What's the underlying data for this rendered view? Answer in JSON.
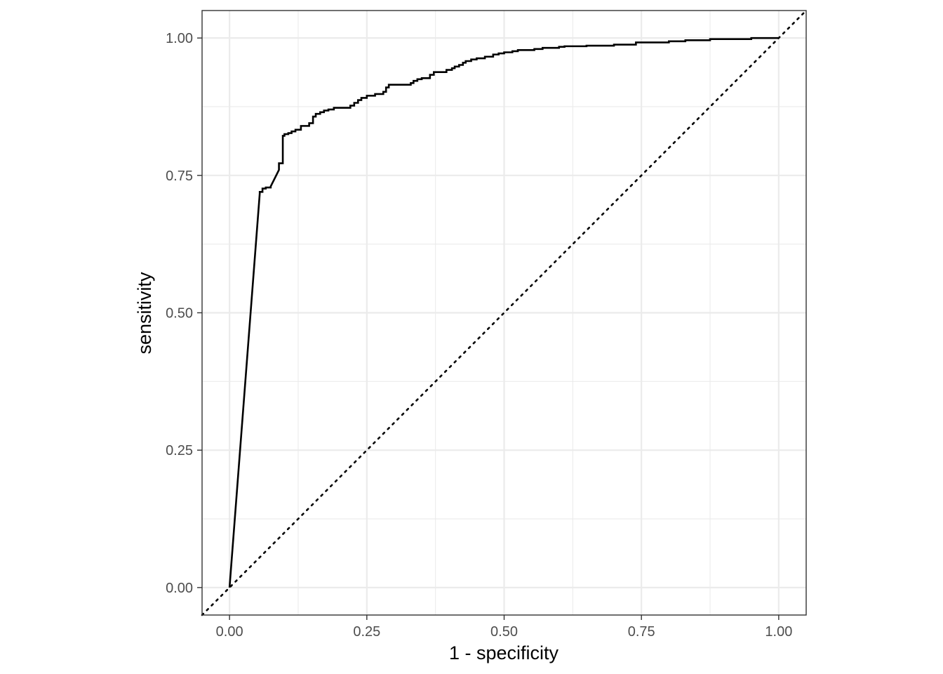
{
  "chart_data": {
    "type": "line",
    "xlabel": "1 - specificity",
    "ylabel": "sensitivity",
    "xlim": [
      -0.05,
      1.05
    ],
    "ylim": [
      -0.05,
      1.05
    ],
    "x_ticks": [
      0,
      0.25,
      0.5,
      0.75,
      1
    ],
    "y_ticks": [
      0,
      0.25,
      0.5,
      0.75,
      1
    ],
    "x_tick_labels": [
      "0.00",
      "0.25",
      "0.50",
      "0.75",
      "1.00"
    ],
    "y_tick_labels": [
      "0.00",
      "0.25",
      "0.50",
      "0.75",
      "1.00"
    ],
    "grid": true,
    "aspect": "equal",
    "reference_line": {
      "x": [
        0,
        1
      ],
      "y": [
        0,
        1
      ],
      "style": "dotted"
    },
    "series": [
      {
        "style": "solid",
        "color": "#000000",
        "points": [
          [
            0.0,
            0.0
          ],
          [
            0.055,
            0.717
          ],
          [
            0.055,
            0.72
          ],
          [
            0.06,
            0.72
          ],
          [
            0.06,
            0.726
          ],
          [
            0.066,
            0.726
          ],
          [
            0.066,
            0.728
          ],
          [
            0.075,
            0.728
          ],
          [
            0.075,
            0.73
          ],
          [
            0.09,
            0.76
          ],
          [
            0.09,
            0.772
          ],
          [
            0.097,
            0.772
          ],
          [
            0.097,
            0.822
          ],
          [
            0.1,
            0.822
          ],
          [
            0.1,
            0.825
          ],
          [
            0.107,
            0.825
          ],
          [
            0.107,
            0.827
          ],
          [
            0.113,
            0.827
          ],
          [
            0.113,
            0.83
          ],
          [
            0.12,
            0.83
          ],
          [
            0.12,
            0.833
          ],
          [
            0.13,
            0.833
          ],
          [
            0.13,
            0.84
          ],
          [
            0.145,
            0.84
          ],
          [
            0.145,
            0.845
          ],
          [
            0.152,
            0.845
          ],
          [
            0.152,
            0.857
          ],
          [
            0.157,
            0.857
          ],
          [
            0.157,
            0.862
          ],
          [
            0.165,
            0.862
          ],
          [
            0.165,
            0.865
          ],
          [
            0.172,
            0.865
          ],
          [
            0.172,
            0.868
          ],
          [
            0.18,
            0.868
          ],
          [
            0.18,
            0.87
          ],
          [
            0.19,
            0.87
          ],
          [
            0.19,
            0.873
          ],
          [
            0.22,
            0.873
          ],
          [
            0.22,
            0.877
          ],
          [
            0.227,
            0.877
          ],
          [
            0.227,
            0.882
          ],
          [
            0.234,
            0.882
          ],
          [
            0.234,
            0.887
          ],
          [
            0.24,
            0.887
          ],
          [
            0.24,
            0.891
          ],
          [
            0.25,
            0.891
          ],
          [
            0.25,
            0.895
          ],
          [
            0.265,
            0.895
          ],
          [
            0.265,
            0.898
          ],
          [
            0.28,
            0.898
          ],
          [
            0.28,
            0.902
          ],
          [
            0.285,
            0.902
          ],
          [
            0.285,
            0.91
          ],
          [
            0.29,
            0.91
          ],
          [
            0.29,
            0.915
          ],
          [
            0.33,
            0.915
          ],
          [
            0.33,
            0.918
          ],
          [
            0.335,
            0.918
          ],
          [
            0.335,
            0.922
          ],
          [
            0.342,
            0.922
          ],
          [
            0.342,
            0.925
          ],
          [
            0.35,
            0.925
          ],
          [
            0.35,
            0.927
          ],
          [
            0.365,
            0.927
          ],
          [
            0.365,
            0.933
          ],
          [
            0.372,
            0.933
          ],
          [
            0.372,
            0.938
          ],
          [
            0.395,
            0.938
          ],
          [
            0.395,
            0.942
          ],
          [
            0.405,
            0.942
          ],
          [
            0.405,
            0.945
          ],
          [
            0.41,
            0.945
          ],
          [
            0.41,
            0.948
          ],
          [
            0.418,
            0.948
          ],
          [
            0.418,
            0.951
          ],
          [
            0.425,
            0.951
          ],
          [
            0.425,
            0.955
          ],
          [
            0.43,
            0.955
          ],
          [
            0.43,
            0.958
          ],
          [
            0.44,
            0.958
          ],
          [
            0.44,
            0.961
          ],
          [
            0.45,
            0.961
          ],
          [
            0.45,
            0.963
          ],
          [
            0.465,
            0.963
          ],
          [
            0.465,
            0.966
          ],
          [
            0.48,
            0.966
          ],
          [
            0.48,
            0.97
          ],
          [
            0.49,
            0.97
          ],
          [
            0.49,
            0.972
          ],
          [
            0.5,
            0.972
          ],
          [
            0.5,
            0.974
          ],
          [
            0.515,
            0.974
          ],
          [
            0.515,
            0.976
          ],
          [
            0.525,
            0.976
          ],
          [
            0.525,
            0.978
          ],
          [
            0.555,
            0.978
          ],
          [
            0.555,
            0.98
          ],
          [
            0.57,
            0.98
          ],
          [
            0.57,
            0.982
          ],
          [
            0.6,
            0.982
          ],
          [
            0.6,
            0.984
          ],
          [
            0.61,
            0.984
          ],
          [
            0.61,
            0.985
          ],
          [
            0.65,
            0.985
          ],
          [
            0.65,
            0.986
          ],
          [
            0.7,
            0.986
          ],
          [
            0.7,
            0.988
          ],
          [
            0.74,
            0.988
          ],
          [
            0.74,
            0.992
          ],
          [
            0.8,
            0.992
          ],
          [
            0.8,
            0.994
          ],
          [
            0.83,
            0.994
          ],
          [
            0.83,
            0.996
          ],
          [
            0.875,
            0.996
          ],
          [
            0.875,
            0.998
          ],
          [
            0.95,
            0.998
          ],
          [
            0.95,
            1.0
          ],
          [
            1.0,
            1.0
          ]
        ]
      }
    ]
  }
}
